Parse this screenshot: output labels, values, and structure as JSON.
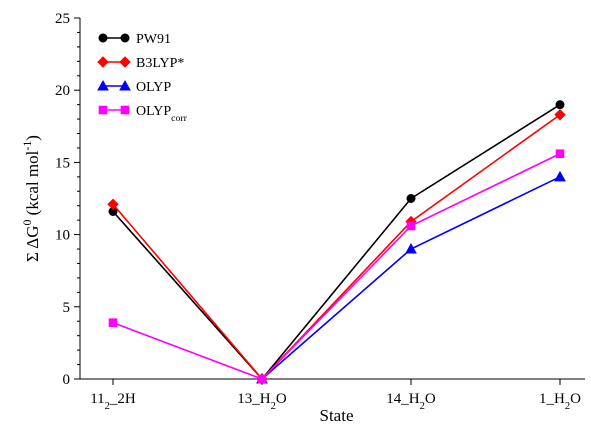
{
  "chart_data": {
    "type": "line",
    "categories": [
      "11₂_2H",
      "13_H₂O",
      "14_H₂O",
      "1_H₂O"
    ],
    "xlabel": "State",
    "ylabel": "Σ ΔG⁰ (kcal mol⁻¹)",
    "ylim": [
      0,
      25
    ],
    "yticks": [
      0,
      5,
      10,
      15,
      20,
      25
    ],
    "grid": false,
    "legend_position": "top-left",
    "series": [
      {
        "name": "PW91",
        "color": "#000000",
        "marker": "circle",
        "values": [
          11.6,
          0.0,
          12.5,
          19.0
        ]
      },
      {
        "name": "B3LYP*",
        "color": "#ff0000",
        "marker": "diamond",
        "values": [
          12.1,
          0.0,
          10.9,
          18.3
        ]
      },
      {
        "name": "OLYP",
        "color": "#0000ff",
        "marker": "triangle",
        "values": [
          null,
          0.0,
          9.0,
          14.0
        ]
      },
      {
        "name": "OLYPcorr",
        "color": "#ff00ff",
        "marker": "square",
        "values": [
          3.9,
          0.0,
          10.6,
          15.6
        ]
      }
    ]
  }
}
